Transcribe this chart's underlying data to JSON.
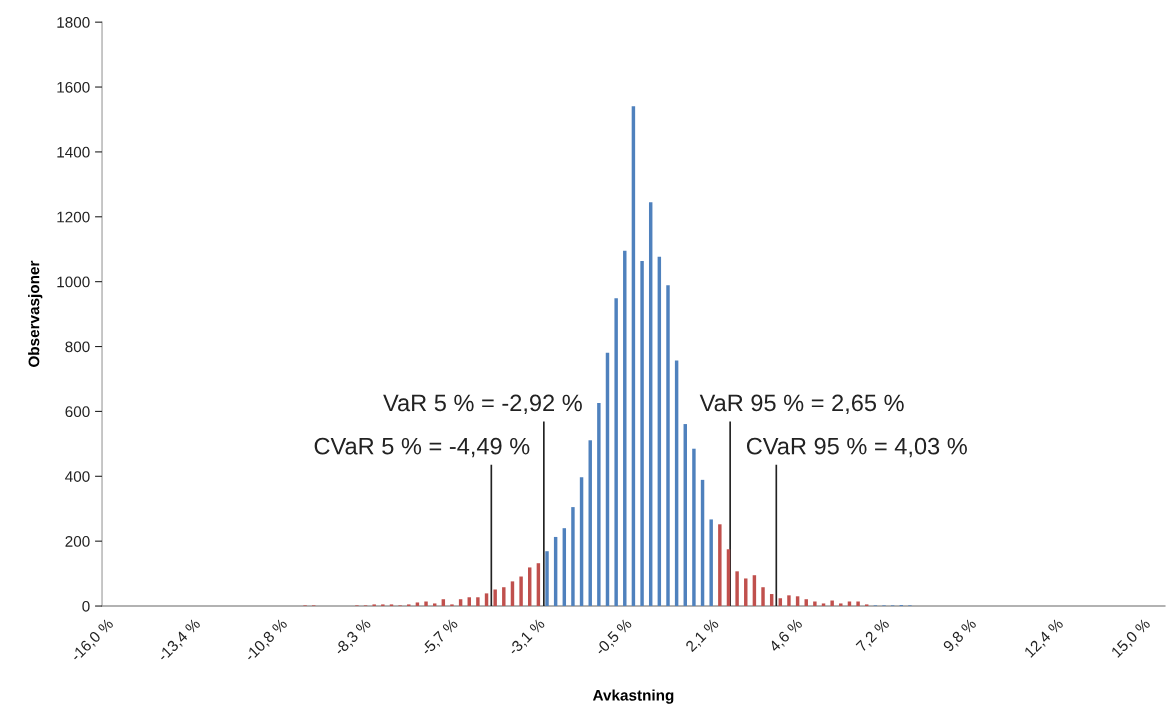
{
  "chart_data": {
    "type": "bar",
    "xlabel": "Avkastning",
    "ylabel": "Observasjoner",
    "x": [
      -10.058,
      -9.8,
      -8.508,
      -8.25,
      -7.992,
      -7.733,
      -7.475,
      -7.217,
      -6.958,
      -6.7,
      -6.442,
      -6.183,
      -5.925,
      -5.667,
      -5.408,
      -5.15,
      -4.892,
      -4.633,
      -4.375,
      -4.117,
      -3.858,
      -3.6,
      -3.342,
      -3.083,
      -2.825,
      -2.567,
      -2.308,
      -2.05,
      -1.792,
      -1.533,
      -1.275,
      -1.017,
      -0.758,
      -0.5,
      -0.242,
      0.017,
      0.275,
      0.533,
      0.792,
      1.05,
      1.308,
      1.567,
      1.825,
      2.083,
      2.342,
      2.6,
      2.858,
      3.117,
      3.375,
      3.633,
      3.892,
      4.15,
      4.408,
      4.667,
      4.925,
      5.183,
      5.442,
      5.7,
      5.958,
      6.217,
      6.475,
      6.733,
      6.992,
      7.25,
      7.508,
      7.767,
      8.025
    ],
    "values": [
      2,
      2,
      2,
      2,
      5,
      5,
      5,
      2,
      5,
      11,
      14,
      8,
      21,
      5,
      21,
      27,
      27,
      39,
      51,
      58,
      76,
      91,
      119,
      132,
      169,
      213,
      240,
      305,
      397,
      511,
      626,
      781,
      949,
      1095,
      1541,
      1064,
      1245,
      1077,
      989,
      757,
      561,
      485,
      389,
      267,
      252,
      175,
      107,
      85,
      95,
      58,
      37,
      24,
      33,
      30,
      21,
      14,
      8,
      17,
      8,
      14,
      14,
      5,
      2,
      2,
      2,
      3,
      2
    ],
    "colors": [
      "#c0504d",
      "#c0504d",
      "#c0504d",
      "#c0504d",
      "#c0504d",
      "#c0504d",
      "#c0504d",
      "#c0504d",
      "#c0504d",
      "#c0504d",
      "#c0504d",
      "#c0504d",
      "#c0504d",
      "#c0504d",
      "#c0504d",
      "#c0504d",
      "#c0504d",
      "#c0504d",
      "#c0504d",
      "#c0504d",
      "#c0504d",
      "#c0504d",
      "#c0504d",
      "#c0504d",
      "#4f81bd",
      "#4f81bd",
      "#4f81bd",
      "#4f81bd",
      "#4f81bd",
      "#4f81bd",
      "#4f81bd",
      "#4f81bd",
      "#4f81bd",
      "#4f81bd",
      "#4f81bd",
      "#4f81bd",
      "#4f81bd",
      "#4f81bd",
      "#4f81bd",
      "#4f81bd",
      "#4f81bd",
      "#4f81bd",
      "#4f81bd",
      "#4f81bd",
      "#c0504d",
      "#c0504d",
      "#c0504d",
      "#c0504d",
      "#c0504d",
      "#c0504d",
      "#c0504d",
      "#c0504d",
      "#c0504d",
      "#c0504d",
      "#c0504d",
      "#c0504d",
      "#c0504d",
      "#c0504d",
      "#c0504d",
      "#c0504d",
      "#c0504d",
      "#c0504d",
      "#4f81bd",
      "#4f81bd",
      "#4f81bd",
      "#4f81bd",
      "#4f81bd"
    ],
    "xlim": [
      -16.129,
      15.646
    ],
    "xticks": [
      {
        "value": -16.0,
        "label": "-16,0 %"
      },
      {
        "value": -13.4,
        "label": "-13,4 %"
      },
      {
        "value": -10.8,
        "label": "-10,8 %"
      },
      {
        "value": -8.3,
        "label": "-8,3 %"
      },
      {
        "value": -5.7,
        "label": "-5,7 %"
      },
      {
        "value": -3.1,
        "label": "-3,1 %"
      },
      {
        "value": -0.5,
        "label": "-0,5 %"
      },
      {
        "value": 2.1,
        "label": "2,1 %"
      },
      {
        "value": 4.6,
        "label": "4,6 %"
      },
      {
        "value": 7.2,
        "label": "7,2 %"
      },
      {
        "value": 9.8,
        "label": "9,8 %"
      },
      {
        "value": 12.4,
        "label": "12,4 %"
      },
      {
        "value": 15.0,
        "label": "15,0 %"
      }
    ],
    "ylim": [
      0,
      1800
    ],
    "yticks": [
      0,
      200,
      400,
      600,
      800,
      1000,
      1200,
      1400,
      1600,
      1800
    ],
    "grid": false,
    "ref_lines": [
      {
        "axis": "x",
        "value": -4.49,
        "label": "CVaR 5 % = -4,49 %",
        "color": "#222222"
      },
      {
        "axis": "x",
        "value": -2.92,
        "label": "VaR 5 % = -2,92 %",
        "color": "#222222"
      },
      {
        "axis": "x",
        "value": 2.65,
        "label": "VaR 95 % = 2,65 %",
        "color": "#222222"
      },
      {
        "axis": "x",
        "value": 4.03,
        "label": "CVaR 95 % = 4,03 %",
        "color": "#222222"
      }
    ]
  }
}
